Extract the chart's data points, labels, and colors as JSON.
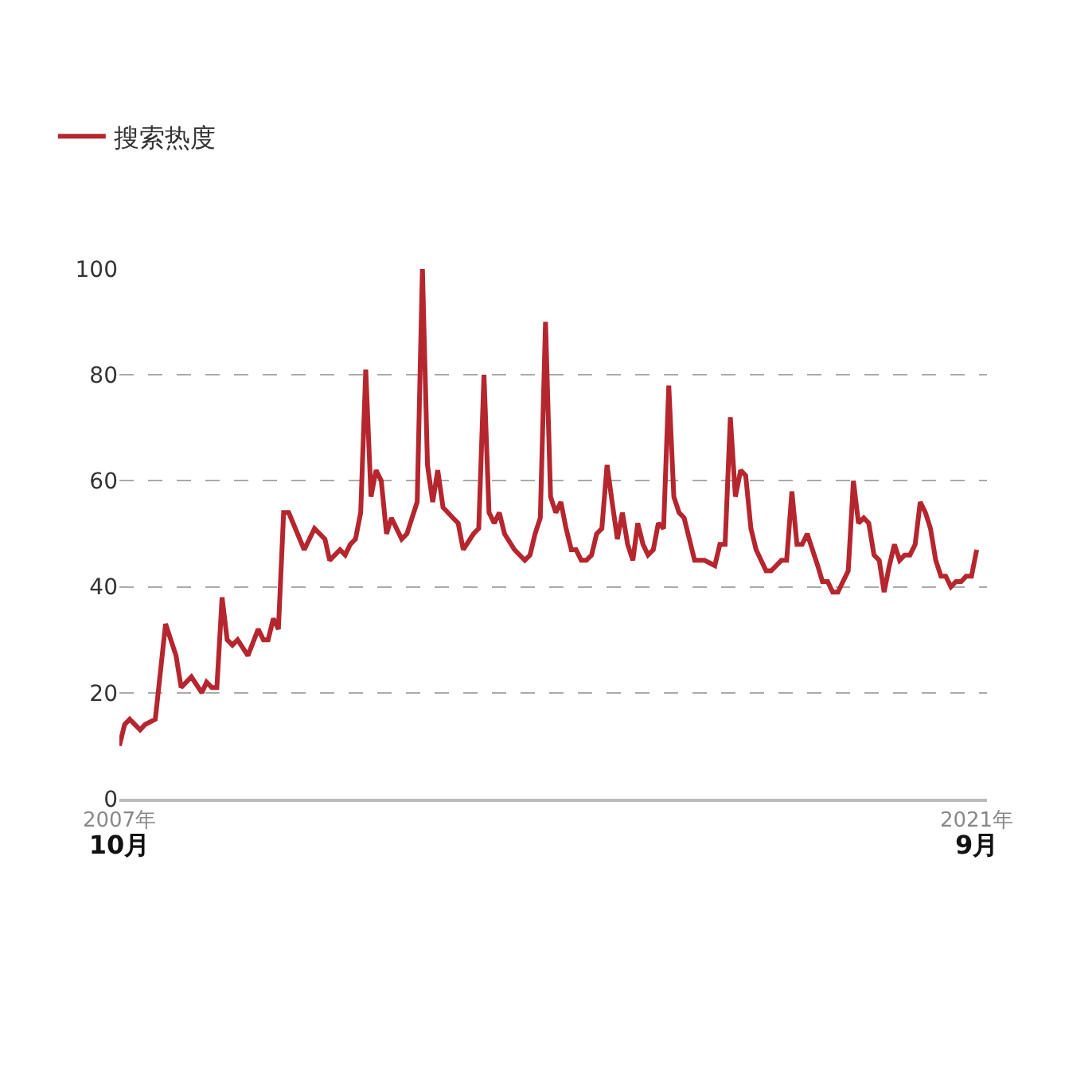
{
  "chart_data": {
    "type": "line",
    "x": [
      "2007-10",
      "2007-11",
      "2007-12",
      "2008-02",
      "2008-03",
      "2008-05",
      "2008-07",
      "2008-09",
      "2008-10",
      "2008-12",
      "2009-02",
      "2009-03",
      "2009-04",
      "2009-05",
      "2009-06",
      "2009-07",
      "2009-08",
      "2009-09",
      "2009-11",
      "2010-01",
      "2010-02",
      "2010-03",
      "2010-04",
      "2010-05",
      "2010-06",
      "2010-07",
      "2010-10",
      "2010-12",
      "2011-02",
      "2011-03",
      "2011-05",
      "2011-06",
      "2011-07",
      "2011-08",
      "2011-09",
      "2011-10",
      "2011-11",
      "2011-12",
      "2012-01",
      "2012-02",
      "2012-03",
      "2012-05",
      "2012-06",
      "2012-08",
      "2012-09",
      "2012-10",
      "2012-11",
      "2012-12",
      "2013-01",
      "2013-03",
      "2013-04",
      "2013-05",
      "2013-07",
      "2013-08",
      "2013-09",
      "2013-10",
      "2013-11",
      "2013-12",
      "2014-01",
      "2014-03",
      "2014-05",
      "2014-06",
      "2014-07",
      "2014-08",
      "2014-09",
      "2014-10",
      "2014-11",
      "2014-12",
      "2015-01",
      "2015-02",
      "2015-03",
      "2015-04",
      "2015-05",
      "2015-06",
      "2015-07",
      "2015-08",
      "2015-09",
      "2015-10",
      "2015-11",
      "2015-12",
      "2016-01",
      "2016-02",
      "2016-03",
      "2016-04",
      "2016-05",
      "2016-06",
      "2016-07",
      "2016-08",
      "2016-09",
      "2016-10",
      "2016-11",
      "2016-12",
      "2017-02",
      "2017-04",
      "2017-06",
      "2017-07",
      "2017-08",
      "2017-09",
      "2017-10",
      "2017-11",
      "2017-12",
      "2018-01",
      "2018-02",
      "2018-04",
      "2018-05",
      "2018-07",
      "2018-08",
      "2018-09",
      "2018-10",
      "2018-11",
      "2018-12",
      "2019-02",
      "2019-03",
      "2019-04",
      "2019-05",
      "2019-06",
      "2019-07",
      "2019-08",
      "2019-09",
      "2019-10",
      "2019-11",
      "2019-12",
      "2020-01",
      "2020-02",
      "2020-03",
      "2020-04",
      "2020-05",
      "2020-06",
      "2020-07",
      "2020-08",
      "2020-09",
      "2020-10",
      "2020-11",
      "2020-12",
      "2021-01",
      "2021-02",
      "2021-03",
      "2021-04",
      "2021-05",
      "2021-06",
      "2021-07",
      "2021-08",
      "2021-09"
    ],
    "series": [
      {
        "name": "搜索热度",
        "color": "#b5262e",
        "values": [
          10,
          14,
          15,
          13,
          14,
          15,
          33,
          27,
          21,
          23,
          20,
          22,
          21,
          21,
          38,
          30,
          29,
          30,
          27,
          32,
          30,
          30,
          34,
          32,
          54,
          54,
          47,
          51,
          49,
          45,
          47,
          46,
          48,
          49,
          54,
          81,
          57,
          62,
          60,
          50,
          53,
          49,
          50,
          56,
          100,
          63,
          56,
          62,
          55,
          53,
          52,
          47,
          50,
          51,
          80,
          54,
          52,
          54,
          50,
          47,
          45,
          46,
          50,
          53,
          90,
          57,
          54,
          56,
          51,
          47,
          47,
          45,
          45,
          46,
          50,
          51,
          63,
          56,
          49,
          54,
          48,
          45,
          52,
          48,
          46,
          47,
          52,
          51,
          78,
          57,
          54,
          53,
          45,
          45,
          44,
          48,
          48,
          72,
          57,
          62,
          61,
          51,
          47,
          43,
          43,
          45,
          45,
          58,
          48,
          48,
          50,
          44,
          41,
          41,
          39,
          39,
          41,
          43,
          60,
          52,
          53,
          52,
          46,
          45,
          39,
          44,
          48,
          45,
          46,
          46,
          48,
          56,
          54,
          51,
          45,
          42,
          42,
          40,
          41,
          41,
          42,
          42,
          47
        ]
      }
    ],
    "xlim": [
      "2007-10",
      "2021-11"
    ],
    "xticks": [
      {
        "value": "2007-10",
        "label": "2007年\n10月"
      },
      {
        "value": "2021-09",
        "label": "2021年\n9月"
      }
    ],
    "ylim": [
      0,
      100
    ],
    "yticks": [
      0,
      20,
      40,
      60,
      80,
      100
    ],
    "grid": "y",
    "legend": "top left",
    "marker": "none",
    "line_style": "solid"
  }
}
